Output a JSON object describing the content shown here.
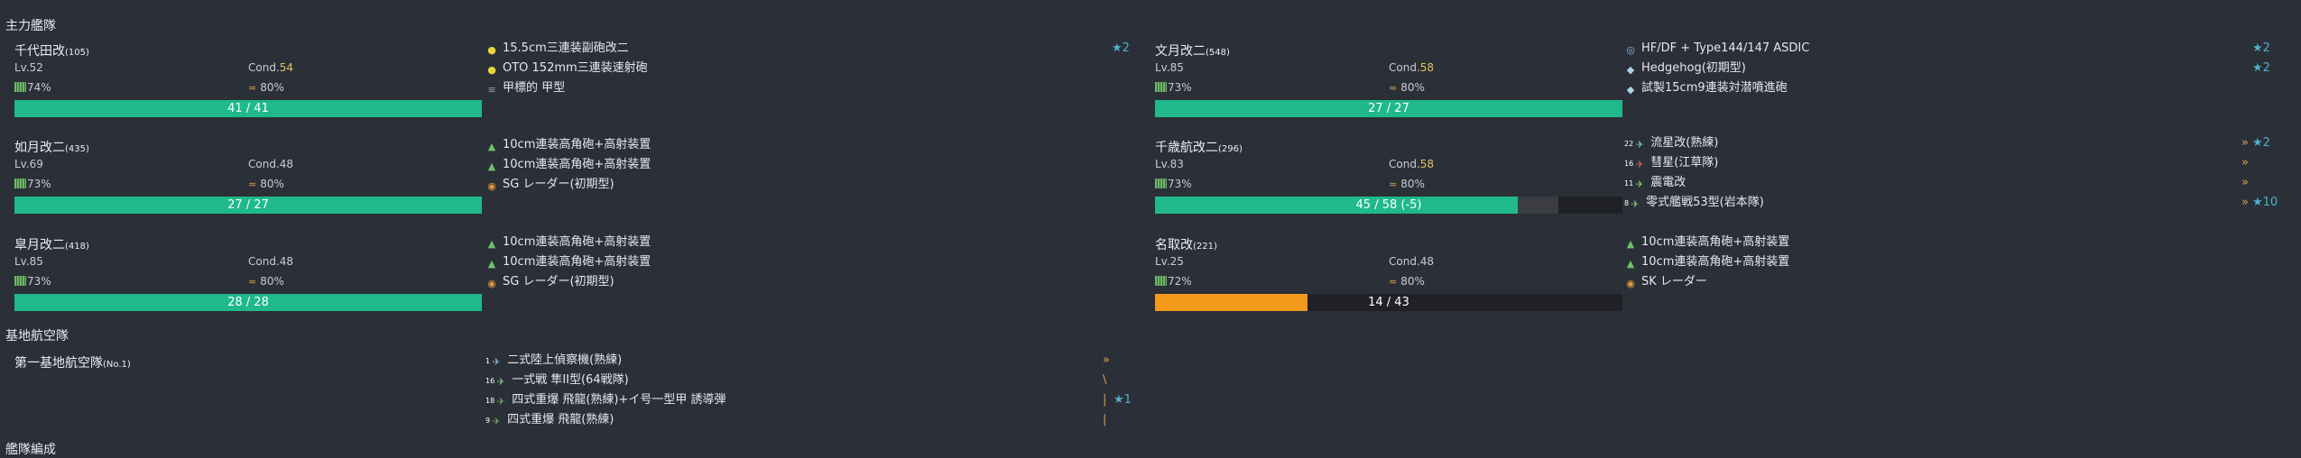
{
  "sections": {
    "main_fleet": "主力艦隊",
    "base_air": "基地航空隊",
    "bottom_cut": "艦隊編成"
  },
  "ships": [
    {
      "name": "千代田改",
      "id": "(105)",
      "level": "Lv.52",
      "cond_label": "Cond.",
      "cond": "54",
      "cond_color": "yellow",
      "fuel": "74%",
      "ammo": "80%",
      "hp": "41 / 41",
      "hp_ratio": 1.0,
      "hp_color": "green",
      "equips": [
        {
          "icon": "yellow-shell-icon",
          "glyph": "●",
          "color": "#e6d43a",
          "name": "15.5cm三連装副砲改二",
          "star": "★2"
        },
        {
          "icon": "yellow-shell-icon",
          "glyph": "●",
          "color": "#e6d43a",
          "name": "OTO 152mm三連装速射砲",
          "star": ""
        },
        {
          "icon": "armor-plate-icon",
          "glyph": "≡",
          "color": "#8ea4bf",
          "name": "甲標的 甲型",
          "star": ""
        }
      ]
    },
    {
      "name": "文月改二",
      "id": "(548)",
      "level": "Lv.85",
      "cond_label": "Cond.",
      "cond": "58",
      "cond_color": "yellow",
      "fuel": "73%",
      "ammo": "80%",
      "hp": "27 / 27",
      "hp_ratio": 1.0,
      "hp_color": "green",
      "equips": [
        {
          "icon": "sonar-icon",
          "glyph": "◎",
          "color": "#8fb4d8",
          "name": "HF/DF + Type144/147 ASDIC",
          "star": "★2"
        },
        {
          "icon": "depth-charge-icon",
          "glyph": "◆",
          "color": "#a9d6e6",
          "name": "Hedgehog(初期型)",
          "star": "★2"
        },
        {
          "icon": "depth-charge-icon",
          "glyph": "◆",
          "color": "#a9d6e6",
          "name": "試製15cm9連装対潜噴進砲",
          "star": ""
        }
      ]
    },
    {
      "name": "如月改二",
      "id": "(435)",
      "level": "Lv.69",
      "cond_label": "Cond.",
      "cond": "48",
      "cond_color": "normal",
      "fuel": "73%",
      "ammo": "80%",
      "hp": "27 / 27",
      "hp_ratio": 1.0,
      "hp_color": "green",
      "equips": [
        {
          "icon": "aa-gun-icon",
          "glyph": "▲",
          "color": "#6cc36a",
          "name": "10cm連装高角砲+高射装置",
          "star": ""
        },
        {
          "icon": "aa-gun-icon",
          "glyph": "▲",
          "color": "#6cc36a",
          "name": "10cm連装高角砲+高射装置",
          "star": ""
        },
        {
          "icon": "radar-icon",
          "glyph": "◉",
          "color": "#e39a3c",
          "name": "SG レーダー(初期型)",
          "star": ""
        }
      ]
    },
    {
      "name": "千歳航改二",
      "id": "(296)",
      "level": "Lv.83",
      "cond_label": "Cond.",
      "cond": "58",
      "cond_color": "yellow",
      "fuel": "73%",
      "ammo": "80%",
      "hp": "45 / 58 (-5)",
      "hp_ratio": 0.776,
      "hp_color": "green",
      "hp_pending": 0.086,
      "equips": [
        {
          "icon": "dive-bomber-icon",
          "glyph": "✈",
          "color": "#7fc6a0",
          "slot": "22",
          "name": "流星改(熟練)",
          "star": "★2",
          "prof": "»"
        },
        {
          "icon": "dive-bomber-icon",
          "glyph": "✈",
          "color": "#d6605c",
          "slot": "16",
          "name": "彗星(江草隊)",
          "star": "",
          "prof": "»"
        },
        {
          "icon": "fighter-icon",
          "glyph": "✈",
          "color": "#7fc67a",
          "slot": "11",
          "name": "震電改",
          "star": "",
          "prof": "»"
        },
        {
          "icon": "fighter-icon",
          "glyph": "✈",
          "color": "#7fc67a",
          "slot": "8",
          "name": "零式艦戦53型(岩本隊)",
          "star": "★10",
          "prof": "»"
        }
      ]
    },
    {
      "name": "皐月改二",
      "id": "(418)",
      "level": "Lv.85",
      "cond_label": "Cond.",
      "cond": "48",
      "cond_color": "normal",
      "fuel": "73%",
      "ammo": "80%",
      "hp": "28 / 28",
      "hp_ratio": 1.0,
      "hp_color": "green",
      "equips": [
        {
          "icon": "aa-gun-icon",
          "glyph": "▲",
          "color": "#6cc36a",
          "name": "10cm連装高角砲+高射装置",
          "star": ""
        },
        {
          "icon": "aa-gun-icon",
          "glyph": "▲",
          "color": "#6cc36a",
          "name": "10cm連装高角砲+高射装置",
          "star": ""
        },
        {
          "icon": "radar-icon",
          "glyph": "◉",
          "color": "#e39a3c",
          "name": "SG レーダー(初期型)",
          "star": ""
        }
      ]
    },
    {
      "name": "名取改",
      "id": "(221)",
      "level": "Lv.25",
      "cond_label": "Cond.",
      "cond": "48",
      "cond_color": "normal",
      "fuel": "72%",
      "ammo": "80%",
      "hp": "14 / 43",
      "hp_ratio": 0.326,
      "hp_color": "orange",
      "equips": [
        {
          "icon": "aa-gun-icon",
          "glyph": "▲",
          "color": "#6cc36a",
          "name": "10cm連装高角砲+高射装置",
          "star": ""
        },
        {
          "icon": "aa-gun-icon",
          "glyph": "▲",
          "color": "#6cc36a",
          "name": "10cm連装高角砲+高射装置",
          "star": ""
        },
        {
          "icon": "radar-icon",
          "glyph": "◉",
          "color": "#e39a3c",
          "name": "SK レーダー",
          "star": ""
        }
      ]
    }
  ],
  "base_air": {
    "name": "第一基地航空隊",
    "num": "(No.1)",
    "equips": [
      {
        "icon": "recon-plane-icon",
        "glyph": "✈",
        "color": "#7fb3d6",
        "slot": "1",
        "name": "二式陸上偵察機(熟練)",
        "star": "",
        "prof": "»"
      },
      {
        "icon": "fighter-icon",
        "glyph": "✈",
        "color": "#7fc67a",
        "slot": "16",
        "name": "一式戦 隼II型(64戦隊)",
        "star": "",
        "prof": "\\"
      },
      {
        "icon": "land-bomber-icon",
        "glyph": "✈",
        "color": "#6fa35e",
        "slot": "18",
        "name": "四式重爆 飛龍(熟練)+イ号一型甲 誘導弾",
        "star": "★1",
        "prof": "|"
      },
      {
        "icon": "land-bomber-icon",
        "glyph": "✈",
        "color": "#6fa35e",
        "slot": "9",
        "name": "四式重爆 飛龍(熟練)",
        "star": "",
        "prof": "|"
      }
    ]
  }
}
